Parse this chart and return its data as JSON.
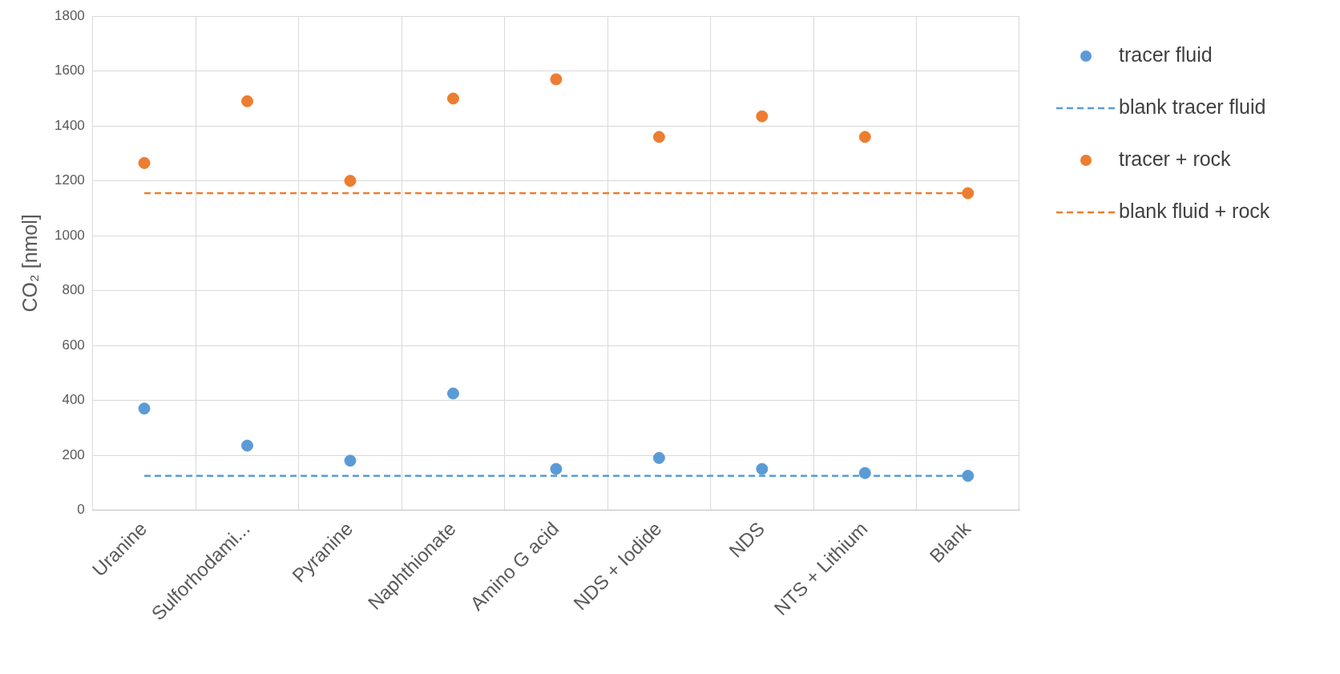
{
  "chart_data": {
    "type": "scatter",
    "ylabel": "CO₂ [nmol]",
    "categories": [
      "Uranine",
      "Sulforhodami...",
      "Pyranine",
      "Naphthionate",
      "Amino G acid",
      "NDS + Iodide",
      "NDS",
      "NTS + Lithium",
      "Blank"
    ],
    "series": [
      {
        "name": "tracer fluid",
        "color": "#5b9bd5",
        "marker": "circle",
        "values": [
          370,
          235,
          180,
          425,
          150,
          190,
          150,
          135,
          125
        ]
      },
      {
        "name": "blank tracer fluid",
        "type": "line",
        "color": "#5b9bd5",
        "marker": "none",
        "line_style": "dashed",
        "values": [
          125,
          125,
          125,
          125,
          125,
          125,
          125,
          125,
          125
        ]
      },
      {
        "name": "tracer + rock",
        "color": "#ed7d31",
        "marker": "circle",
        "values": [
          1265,
          1490,
          1200,
          1500,
          1570,
          1360,
          1435,
          1360,
          1155
        ]
      },
      {
        "name": "blank fluid + rock",
        "type": "line",
        "color": "#ed7d31",
        "marker": "none",
        "line_style": "dashed",
        "values": [
          1155,
          1155,
          1155,
          1155,
          1155,
          1155,
          1155,
          1155,
          1155
        ]
      }
    ],
    "ylim": [
      0,
      1800
    ],
    "yticks": [
      0,
      200,
      400,
      600,
      800,
      1000,
      1200,
      1400,
      1600,
      1800
    ],
    "grid": true,
    "legend": "right"
  }
}
